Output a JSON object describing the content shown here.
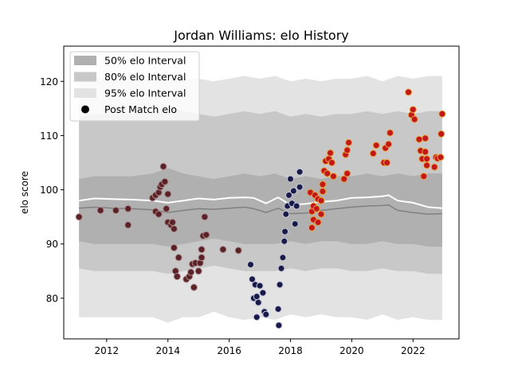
{
  "chart_data": {
    "type": "scatter",
    "title": "Jordan Williams: elo History",
    "xlabel": "",
    "ylabel": "elo score",
    "xlim": [
      2010.6,
      2023.5
    ],
    "ylim": [
      72.5,
      126.5
    ],
    "x_ticks": [
      2012,
      2014,
      2016,
      2018,
      2020,
      2022
    ],
    "y_ticks": [
      80,
      90,
      100,
      110,
      120
    ],
    "legend_position": "top-left",
    "legend": [
      {
        "label": "50% elo Interval",
        "color": "#b0b0b0"
      },
      {
        "label": "80% elo Interval",
        "color": "#c8c8c8"
      },
      {
        "label": "95% elo Interval",
        "color": "#e3e3e3"
      },
      {
        "label": "Post Match elo",
        "color": "#000000"
      }
    ],
    "colors": {
      "band95": "#e3e3e3",
      "band80": "#c8c8c8",
      "band50": "#b0b0b0",
      "mean_line": "#ffffff",
      "median_line": "#808080",
      "era1_fill": "#5a2226",
      "era2_fill": "#181a4a",
      "era3_fill": "#c2181a",
      "era3_edge": "#e8a13c"
    },
    "bands": {
      "x": [
        2011.1,
        2011.6,
        2012.2,
        2012.8,
        2013.5,
        2014.0,
        2014.5,
        2015.0,
        2015.5,
        2016.0,
        2016.5,
        2017.0,
        2017.5,
        2018.0,
        2018.5,
        2019.0,
        2019.5,
        2020.0,
        2020.5,
        2021.0,
        2021.5,
        2022.0,
        2022.5,
        2022.95
      ],
      "lo95": [
        76.5,
        76.5,
        76.5,
        76.5,
        76.5,
        75.5,
        76.5,
        76.5,
        77.5,
        76.5,
        76.0,
        76.5,
        76.0,
        77.0,
        76.5,
        77.0,
        76.5,
        76.5,
        76.0,
        77.0,
        76.0,
        76.5,
        76.0,
        76.0
      ],
      "lo80": [
        85.5,
        85.0,
        85.0,
        85.0,
        85.0,
        84.5,
        85.0,
        85.5,
        86.0,
        85.5,
        85.0,
        85.0,
        85.0,
        85.5,
        85.0,
        85.5,
        85.5,
        85.0,
        85.0,
        85.5,
        85.0,
        85.0,
        84.5,
        84.5
      ],
      "lo50": [
        90.5,
        90.0,
        90.0,
        90.0,
        90.0,
        89.5,
        90.0,
        90.5,
        91.0,
        90.5,
        90.0,
        90.0,
        90.0,
        90.5,
        90.0,
        90.5,
        90.5,
        90.0,
        90.0,
        90.5,
        90.0,
        90.0,
        89.5,
        89.5
      ],
      "hi50": [
        102.0,
        102.5,
        102.5,
        102.5,
        103.0,
        104.0,
        103.0,
        102.5,
        102.0,
        102.5,
        103.0,
        102.5,
        103.0,
        102.0,
        102.5,
        102.0,
        102.5,
        102.5,
        103.0,
        102.5,
        103.0,
        102.5,
        103.0,
        103.0
      ],
      "hi80": [
        113.5,
        114.0,
        114.0,
        114.0,
        114.5,
        115.5,
        114.5,
        114.0,
        113.5,
        114.0,
        114.5,
        114.0,
        114.5,
        113.5,
        114.0,
        113.5,
        114.0,
        114.0,
        114.5,
        114.0,
        114.5,
        114.0,
        114.5,
        114.5
      ],
      "hi95": [
        120.5,
        120.5,
        120.5,
        120.5,
        120.5,
        121.5,
        120.5,
        120.5,
        120.0,
        120.5,
        121.0,
        120.5,
        121.0,
        120.0,
        120.5,
        120.0,
        120.5,
        120.5,
        121.0,
        120.0,
        121.0,
        120.5,
        121.0,
        121.0
      ]
    },
    "mean_line": {
      "x": [
        2011.1,
        2011.6,
        2012.2,
        2012.8,
        2013.5,
        2014.0,
        2014.5,
        2015.0,
        2015.5,
        2016.0,
        2016.5,
        2016.8,
        2017.2,
        2017.6,
        2018.0,
        2018.5,
        2019.0,
        2019.5,
        2020.0,
        2020.5,
        2021.0,
        2021.2,
        2021.5,
        2022.0,
        2022.5,
        2022.95
      ],
      "y": [
        98.0,
        98.4,
        98.3,
        98.2,
        98.0,
        97.6,
        98.0,
        98.4,
        98.2,
        98.5,
        98.6,
        98.5,
        97.5,
        98.6,
        97.2,
        97.4,
        97.8,
        98.0,
        98.5,
        98.6,
        98.8,
        99.0,
        98.0,
        97.6,
        96.8,
        96.6
      ]
    },
    "median_line": {
      "x": [
        2011.1,
        2011.6,
        2012.2,
        2012.8,
        2013.5,
        2014.0,
        2014.5,
        2015.0,
        2015.5,
        2016.0,
        2016.5,
        2016.8,
        2017.2,
        2017.6,
        2018.0,
        2018.5,
        2019.0,
        2019.5,
        2020.0,
        2020.5,
        2021.0,
        2021.2,
        2021.5,
        2022.0,
        2022.5,
        2022.95
      ],
      "y": [
        96.6,
        96.8,
        96.6,
        96.5,
        96.3,
        95.8,
        96.2,
        96.5,
        96.4,
        96.6,
        96.8,
        96.5,
        95.8,
        96.6,
        95.6,
        95.7,
        96.2,
        96.5,
        96.8,
        97.0,
        97.1,
        97.2,
        96.2,
        95.8,
        95.5,
        95.6
      ]
    },
    "series": [
      {
        "era": 1,
        "points": [
          [
            2011.1,
            95.0
          ],
          [
            2011.8,
            96.2
          ],
          [
            2012.3,
            96.2
          ],
          [
            2012.7,
            93.5
          ],
          [
            2012.7,
            96.5
          ],
          [
            2013.5,
            98.5
          ],
          [
            2013.6,
            96.0
          ],
          [
            2013.6,
            99.0
          ],
          [
            2013.7,
            95.5
          ],
          [
            2013.7,
            99.5
          ],
          [
            2013.75,
            100.5
          ],
          [
            2013.8,
            101.0
          ],
          [
            2013.85,
            104.3
          ],
          [
            2013.9,
            101.5
          ],
          [
            2013.95,
            96.5
          ],
          [
            2014.0,
            99.2
          ],
          [
            2014.0,
            94.0
          ],
          [
            2014.1,
            93.5
          ],
          [
            2014.15,
            94.0
          ],
          [
            2014.2,
            92.8
          ],
          [
            2014.2,
            89.3
          ],
          [
            2014.25,
            85.0
          ],
          [
            2014.3,
            84.0
          ],
          [
            2014.35,
            87.5
          ],
          [
            2014.6,
            83.5
          ],
          [
            2014.7,
            84.0
          ],
          [
            2014.75,
            84.8
          ],
          [
            2014.8,
            86.3
          ],
          [
            2014.85,
            82.0
          ],
          [
            2014.9,
            86.5
          ],
          [
            2015.0,
            85.0
          ],
          [
            2015.05,
            86.5
          ],
          [
            2015.1,
            87.5
          ],
          [
            2015.1,
            89.0
          ],
          [
            2015.15,
            91.5
          ],
          [
            2015.2,
            95.0
          ],
          [
            2015.25,
            91.7
          ],
          [
            2015.8,
            89.0
          ],
          [
            2016.3,
            88.8
          ]
        ]
      },
      {
        "era": 2,
        "points": [
          [
            2016.7,
            86.2
          ],
          [
            2016.75,
            83.5
          ],
          [
            2016.8,
            80.0
          ],
          [
            2016.85,
            82.5
          ],
          [
            2016.9,
            80.3
          ],
          [
            2016.9,
            76.5
          ],
          [
            2016.95,
            79.2
          ],
          [
            2017.0,
            82.3
          ],
          [
            2017.1,
            81.0
          ],
          [
            2017.15,
            77.5
          ],
          [
            2017.2,
            77.0
          ],
          [
            2017.6,
            78.0
          ],
          [
            2017.62,
            75.0
          ],
          [
            2017.65,
            82.5
          ],
          [
            2017.7,
            85.5
          ],
          [
            2017.75,
            87.5
          ],
          [
            2017.8,
            90.5
          ],
          [
            2017.82,
            92.3
          ],
          [
            2017.85,
            95.5
          ],
          [
            2017.9,
            97.0
          ],
          [
            2017.95,
            99.0
          ],
          [
            2018.0,
            102.0
          ],
          [
            2018.05,
            97.5
          ],
          [
            2018.1,
            99.8
          ],
          [
            2018.15,
            93.7
          ],
          [
            2018.2,
            97.0
          ],
          [
            2018.3,
            100.5
          ],
          [
            2018.3,
            103.3
          ]
        ]
      },
      {
        "era": 3,
        "points": [
          [
            2018.65,
            99.5
          ],
          [
            2018.7,
            93.0
          ],
          [
            2018.7,
            96.0
          ],
          [
            2018.75,
            94.5
          ],
          [
            2018.75,
            97.0
          ],
          [
            2018.8,
            99.0
          ],
          [
            2018.85,
            96.5
          ],
          [
            2018.9,
            94.0
          ],
          [
            2018.9,
            98.3
          ],
          [
            2019.0,
            95.5
          ],
          [
            2019.0,
            98.0
          ],
          [
            2019.05,
            99.7
          ],
          [
            2019.05,
            101.0
          ],
          [
            2019.1,
            103.5
          ],
          [
            2019.15,
            105.3
          ],
          [
            2019.2,
            103.0
          ],
          [
            2019.25,
            105.7
          ],
          [
            2019.3,
            106.8
          ],
          [
            2019.35,
            105.0
          ],
          [
            2019.4,
            102.5
          ],
          [
            2019.75,
            102.0
          ],
          [
            2019.8,
            106.5
          ],
          [
            2019.85,
            103.0
          ],
          [
            2019.85,
            107.3
          ],
          [
            2019.9,
            108.7
          ],
          [
            2020.7,
            106.7
          ],
          [
            2020.8,
            108.2
          ],
          [
            2021.05,
            105.0
          ],
          [
            2021.1,
            107.7
          ],
          [
            2021.15,
            105.0
          ],
          [
            2021.2,
            108.4
          ],
          [
            2021.25,
            110.5
          ],
          [
            2021.85,
            118.0
          ],
          [
            2021.95,
            113.8
          ],
          [
            2022.0,
            114.8
          ],
          [
            2022.05,
            113.0
          ],
          [
            2022.2,
            109.3
          ],
          [
            2022.25,
            107.2
          ],
          [
            2022.3,
            105.7
          ],
          [
            2022.35,
            102.5
          ],
          [
            2022.4,
            109.5
          ],
          [
            2022.4,
            107.0
          ],
          [
            2022.45,
            104.5
          ],
          [
            2022.45,
            105.7
          ],
          [
            2022.7,
            104.2
          ],
          [
            2022.75,
            106.0
          ],
          [
            2022.8,
            105.8
          ],
          [
            2022.9,
            106.0
          ],
          [
            2022.92,
            110.3
          ],
          [
            2022.95,
            114.0
          ]
        ]
      }
    ]
  }
}
